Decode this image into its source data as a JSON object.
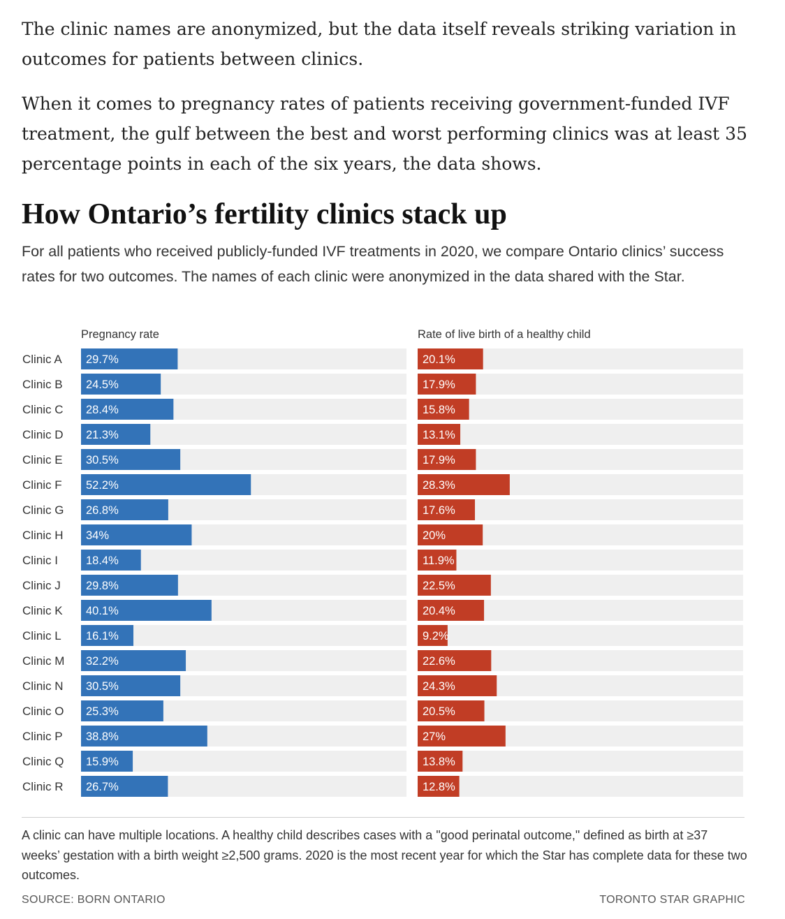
{
  "intro": {
    "paragraph1": "The clinic names are anonymized, but the data itself reveals striking variation in outcomes for patients between clinics.",
    "paragraph2": "When it comes to pregnancy rates of patients receiving government-funded IVF treatment, the gulf between the best and worst performing clinics was at least 35 percentage points in each of the six years, the data shows."
  },
  "graphic": {
    "title": "How Ontario’s fertility clinics stack up",
    "subtitle": "For all patients who received publicly-funded IVF treatments in 2020, we compare Ontario clinics’ success rates for two outcomes. The names of each clinic were anonymized in the data shared with the Star.",
    "note": "A clinic can have multiple locations. A healthy child describes cases with a \"good perinatal outcome,\" defined as birth at ≥37 weeks’ gestation with a birth weight ≥2,500 grams. 2020 is the most recent year for which the Star has complete data for these two outcomes.",
    "source": "SOURCE: BORN ONTARIO",
    "credit": "TORONTO STAR GRAPHIC"
  },
  "colors": {
    "pregnancy": "#3373b8",
    "live_birth": "#c13d25",
    "track": "#efefef"
  },
  "chart_data": {
    "type": "bar",
    "orientation": "horizontal",
    "categories": [
      "Clinic A",
      "Clinic B",
      "Clinic C",
      "Clinic D",
      "Clinic E",
      "Clinic F",
      "Clinic G",
      "Clinic H",
      "Clinic I",
      "Clinic J",
      "Clinic K",
      "Clinic L",
      "Clinic M",
      "Clinic N",
      "Clinic O",
      "Clinic P",
      "Clinic Q",
      "Clinic R"
    ],
    "xlim": [
      0,
      100
    ],
    "unit": "%",
    "series": [
      {
        "name": "Pregnancy rate",
        "values": [
          29.7,
          24.5,
          28.4,
          21.3,
          30.5,
          52.2,
          26.8,
          34,
          18.4,
          29.8,
          40.1,
          16.1,
          32.2,
          30.5,
          25.3,
          38.8,
          15.9,
          26.7
        ]
      },
      {
        "name": "Rate of live birth of a healthy child",
        "values": [
          20.1,
          17.9,
          15.8,
          13.1,
          17.9,
          28.3,
          17.6,
          20,
          11.9,
          22.5,
          20.4,
          9.2,
          22.6,
          24.3,
          20.5,
          27,
          13.8,
          12.8
        ]
      }
    ]
  }
}
